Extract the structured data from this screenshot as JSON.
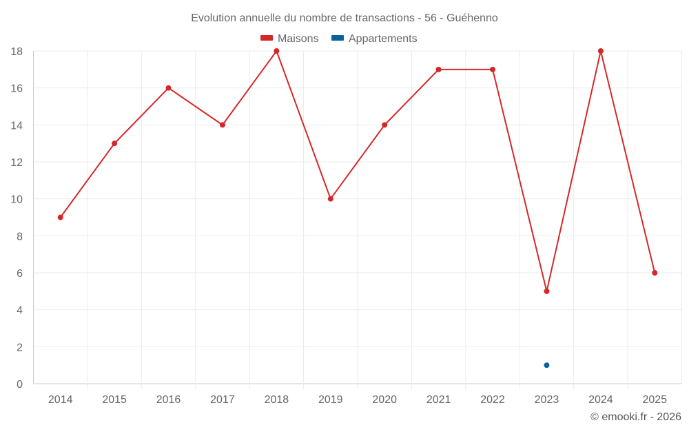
{
  "chart_data": {
    "type": "line",
    "title": "Evolution annuelle du nombre de transactions - 56 - Guéhenno",
    "categories": [
      "2014",
      "2015",
      "2016",
      "2017",
      "2018",
      "2019",
      "2020",
      "2021",
      "2022",
      "2023",
      "2024",
      "2025"
    ],
    "series": [
      {
        "name": "Maisons",
        "color": "#d62728",
        "values": [
          9,
          13,
          16,
          14,
          18,
          10,
          14,
          17,
          17,
          5,
          18,
          6
        ]
      },
      {
        "name": "Appartements",
        "color": "#08629c",
        "values": [
          null,
          null,
          null,
          null,
          null,
          null,
          null,
          null,
          null,
          1,
          null,
          null
        ]
      }
    ],
    "yticks": [
      "0",
      "2",
      "4",
      "6",
      "8",
      "10",
      "12",
      "14",
      "16",
      "18"
    ],
    "ylim": [
      0,
      18
    ],
    "grid": true,
    "legend": "top-center",
    "xlabel": "",
    "ylabel": ""
  },
  "credit": "© emooki.fr - 2026"
}
